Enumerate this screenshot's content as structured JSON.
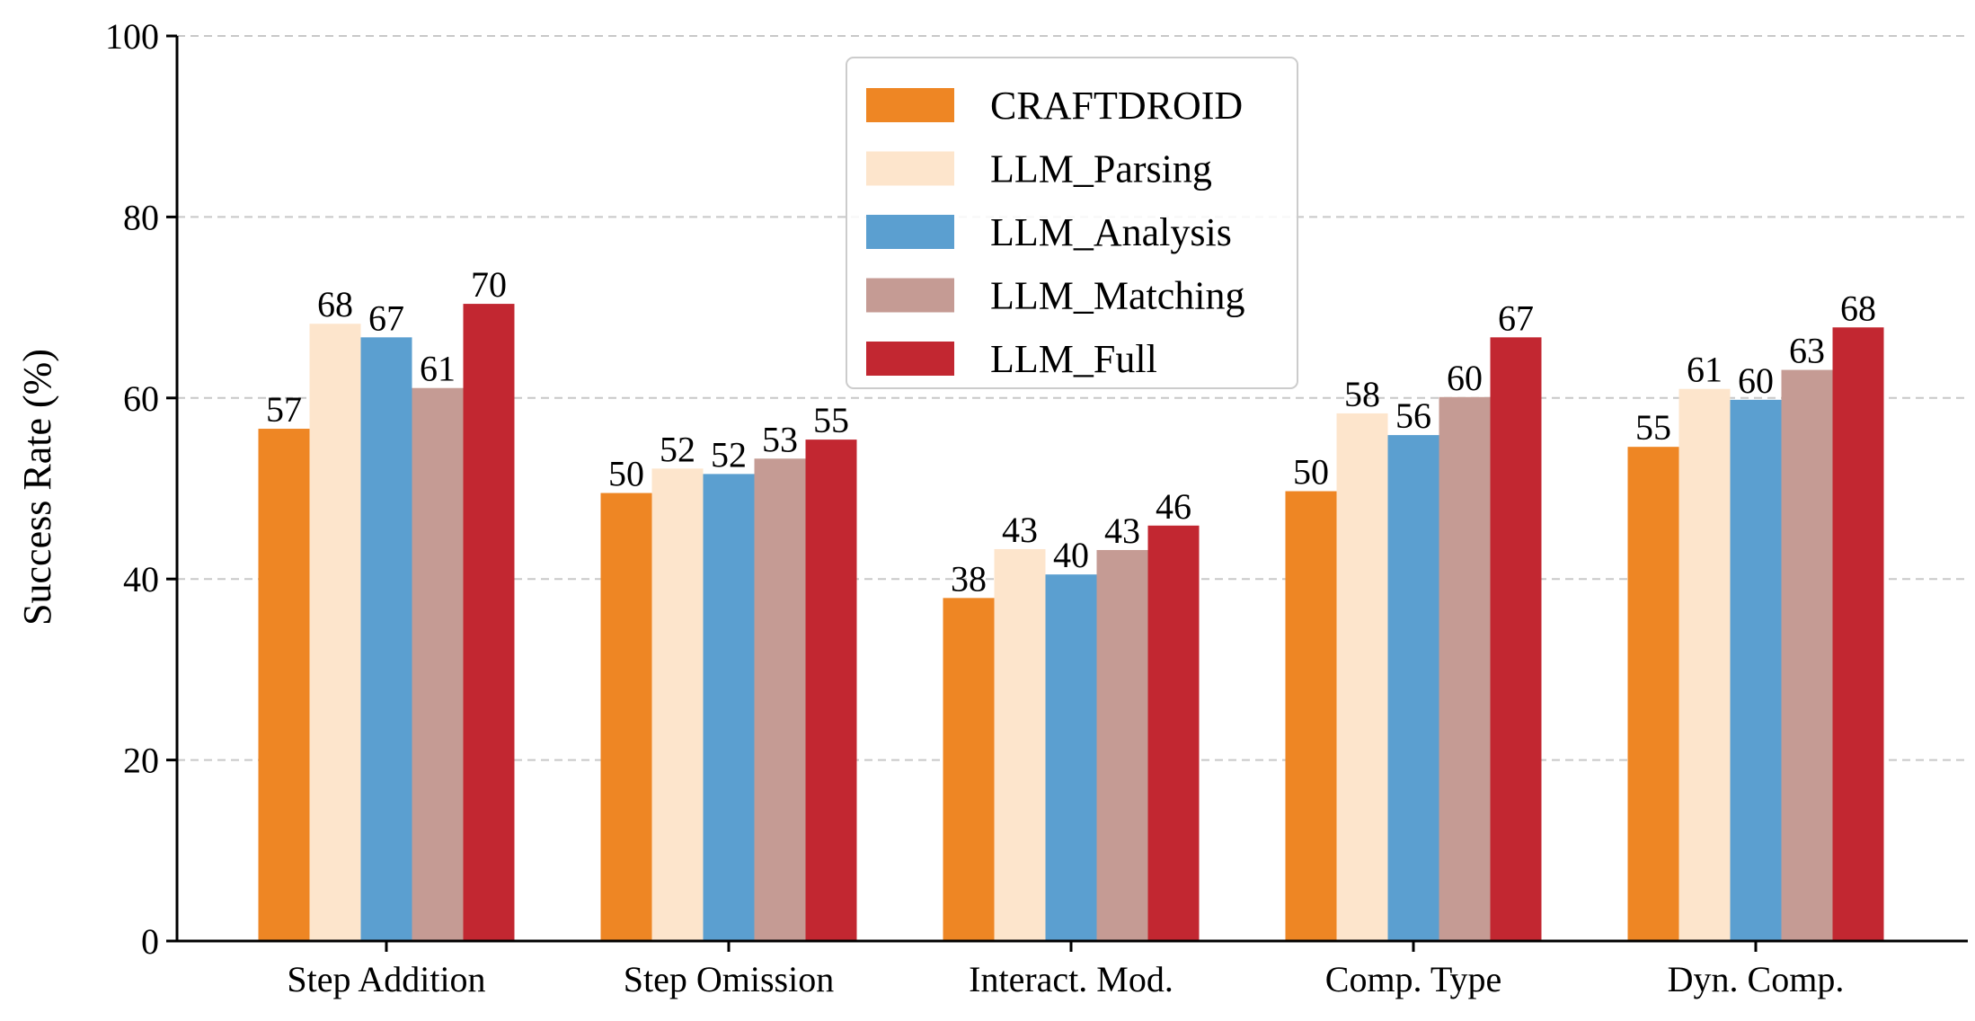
{
  "chart_data": {
    "type": "bar",
    "title": "",
    "xlabel": "",
    "ylabel": "Success Rate (%)",
    "ylim": [
      0,
      100
    ],
    "yticks": [
      0,
      20,
      40,
      60,
      80,
      100
    ],
    "grid": "y-dashed",
    "legend_position": "top-center",
    "categories": [
      "Step Addition",
      "Step Omission",
      "Interact. Mod.",
      "Comp. Type",
      "Dyn. Comp."
    ],
    "series": [
      {
        "name": "CRAFTDROID",
        "color": "#ee8624",
        "values": [
          56.6,
          49.5,
          37.9,
          49.7,
          54.6
        ],
        "labels": [
          "57",
          "50",
          "38",
          "50",
          "55"
        ]
      },
      {
        "name": "LLM_Parsing",
        "color": "#fde5cc",
        "values": [
          68.2,
          52.2,
          43.3,
          58.3,
          61.0
        ],
        "labels": [
          "68",
          "52",
          "43",
          "58",
          "61"
        ]
      },
      {
        "name": "LLM_Analysis",
        "color": "#5b9fd0",
        "values": [
          66.7,
          51.6,
          40.5,
          55.9,
          59.8
        ],
        "labels": [
          "67",
          "52",
          "40",
          "56",
          "60"
        ]
      },
      {
        "name": "LLM_Matching",
        "color": "#c59b94",
        "values": [
          61.1,
          53.3,
          43.2,
          60.1,
          63.1
        ],
        "labels": [
          "61",
          "53",
          "43",
          "60",
          "63"
        ]
      },
      {
        "name": "LLM_Full",
        "color": "#c22731",
        "values": [
          70.4,
          55.4,
          45.9,
          66.7,
          67.8
        ],
        "labels": [
          "70",
          "55",
          "46",
          "67",
          "68"
        ]
      }
    ]
  }
}
